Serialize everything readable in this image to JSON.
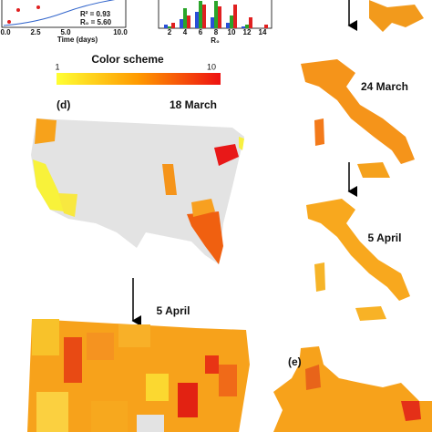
{
  "panel_c": {
    "curve": {
      "x_axis_label": "Time (days)",
      "x_ticks": [
        "0.0",
        "2.5",
        "5.0",
        "10.0"
      ],
      "r_squared": "R² = 0.93",
      "r0": "R₀ = 5.60"
    },
    "histogram": {
      "x_axis_label": "R₀",
      "x_ticks": [
        "2",
        "4",
        "6",
        "8",
        "10",
        "12",
        "14"
      ]
    }
  },
  "color_scheme": {
    "title": "Color scheme",
    "min_label": "1",
    "max_label": "10"
  },
  "panel_d": {
    "label": "(d)",
    "maps": [
      {
        "date": "18 March"
      },
      {
        "date": "5 April"
      }
    ]
  },
  "italy": {
    "maps": [
      {
        "date": "24 March"
      },
      {
        "date": "5 April"
      }
    ]
  },
  "panel_e": {
    "label": "(e)"
  }
}
